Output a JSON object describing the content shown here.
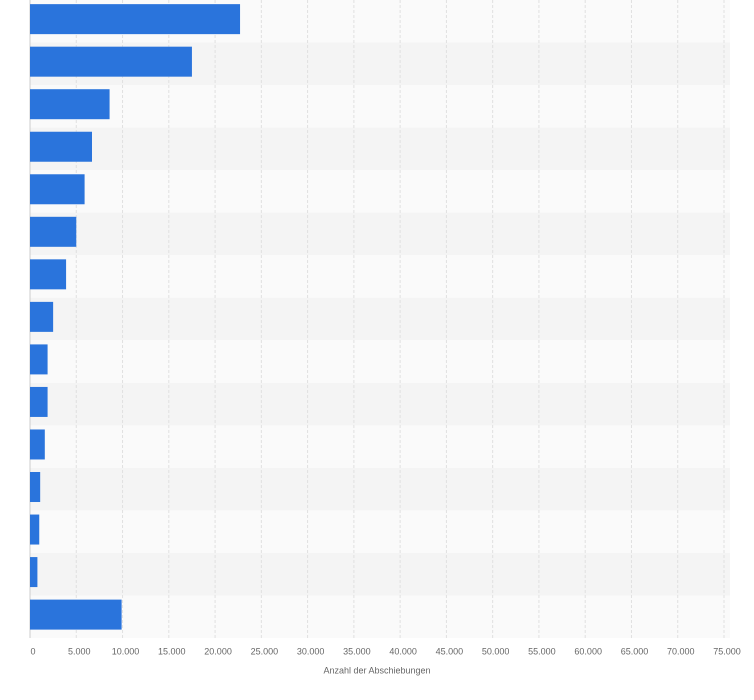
{
  "chart_data": {
    "type": "bar",
    "orientation": "horizontal",
    "x_label": "Anzahl der Abschiebungen",
    "categories": [
      null,
      null,
      null,
      null,
      null,
      null,
      null,
      null,
      null,
      null,
      null,
      null,
      null,
      null,
      null
    ],
    "values": [
      22700,
      17500,
      8600,
      6700,
      5900,
      5000,
      3900,
      2500,
      1900,
      1900,
      1600,
      1100,
      1000,
      800,
      9900
    ],
    "color": "#2a74dc",
    "xlim": [
      0,
      75000
    ],
    "xticks": [
      0,
      {
        "value": 5000,
        "label": "5.000"
      },
      {
        "value": 10000,
        "label": "10.000"
      },
      {
        "value": 15000,
        "label": "15.000"
      },
      {
        "value": 20000,
        "label": "20.000"
      },
      {
        "value": 25000,
        "label": "25.000"
      },
      {
        "value": 30000,
        "label": "30.000"
      },
      {
        "value": 35000,
        "label": "35.000"
      },
      {
        "value": 40000,
        "label": "40.000"
      },
      {
        "value": 45000,
        "label": "45.000"
      },
      {
        "value": 50000,
        "label": "50.000"
      },
      {
        "value": 55000,
        "label": "55.000"
      },
      {
        "value": 60000,
        "label": "60.000"
      },
      {
        "value": 65000,
        "label": "65.000"
      },
      {
        "value": 70000,
        "label": "70.000"
      },
      {
        "value": 75000,
        "label": "75.000"
      }
    ],
    "grid": true
  }
}
